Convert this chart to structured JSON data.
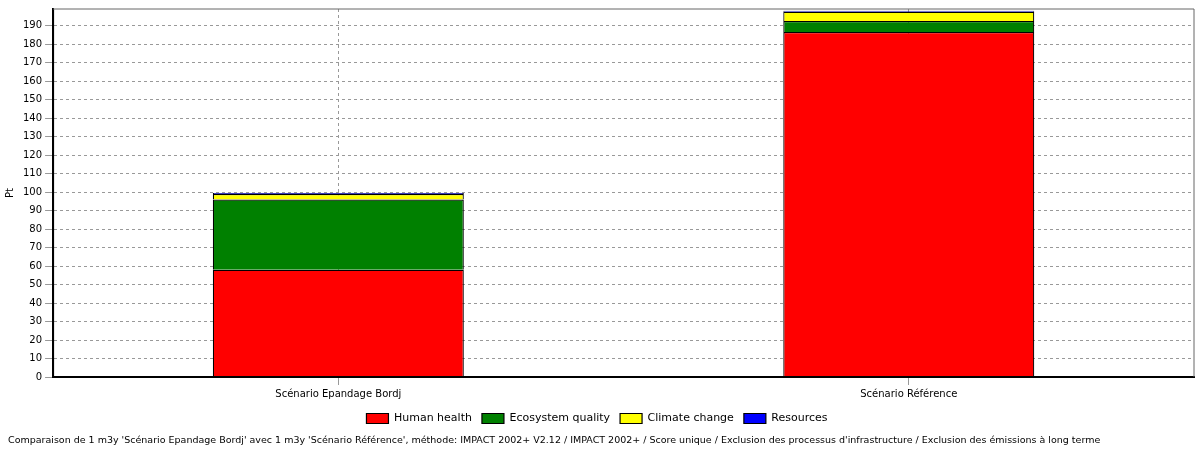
{
  "chart_data": {
    "type": "bar",
    "stacked": true,
    "ylabel": "Pt",
    "categories": [
      "Scénario Epandage Bordj",
      "Scénario Référence"
    ],
    "series": [
      {
        "name": "Human health",
        "color": "#ff0000",
        "values": [
          58,
          186.5
        ]
      },
      {
        "name": "Ecosystem quality",
        "color": "#008000",
        "values": [
          38,
          6
        ]
      },
      {
        "name": "Climate change",
        "color": "#ffff00",
        "values": [
          3,
          5
        ]
      },
      {
        "name": "Resources",
        "color": "#0000ff",
        "values": [
          0.5,
          0.5
        ]
      }
    ],
    "ylim": [
      0,
      199
    ],
    "yticks": [
      0,
      10,
      20,
      30,
      40,
      50,
      60,
      70,
      80,
      90,
      100,
      110,
      120,
      130,
      140,
      150,
      160,
      170,
      180,
      190
    ],
    "grid": true,
    "legend": "bottom",
    "annotations": [
      "Comparaison de 1 m3y 'Scénario Epandage Bordj' avec 1 m3y 'Scénario Référence', méthode: IMPACT 2002+ V2.12 / IMPACT 2002+ / Score unique / Exclusion des processus d'infrastructure / Exclusion des émissions à long terme"
    ]
  }
}
